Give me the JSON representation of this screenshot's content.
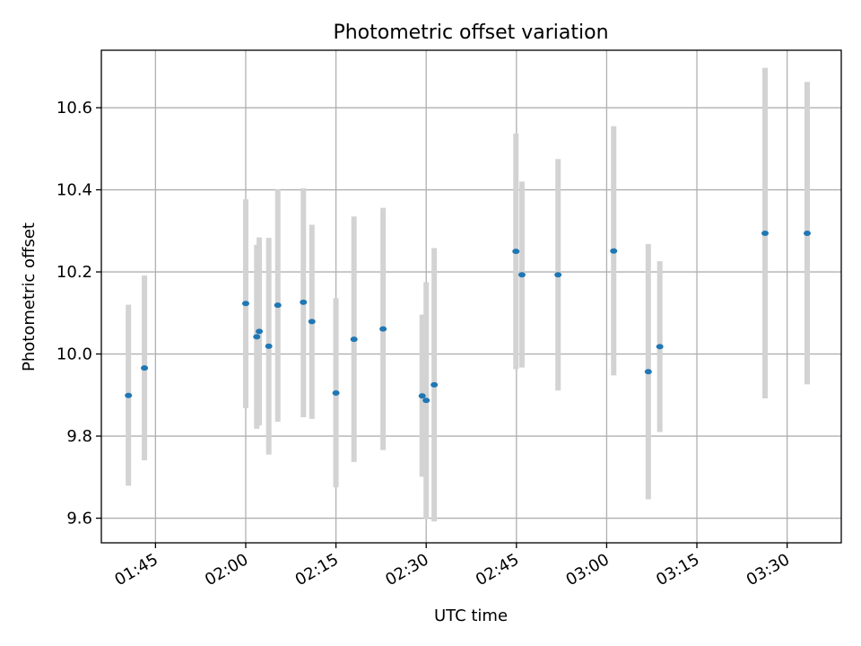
{
  "chart_data": {
    "type": "scatter",
    "title": "Photometric offset variation",
    "xlabel": "UTC time",
    "ylabel": "Photometric offset",
    "x_ticks": [
      "01:45",
      "02:00",
      "02:15",
      "02:30",
      "02:45",
      "03:00",
      "03:15",
      "03:30"
    ],
    "x_tick_values": [
      "01:45",
      "02:00",
      "02:15",
      "02:30",
      "02:45",
      "03:00",
      "03:15",
      "03:30"
    ],
    "y_ticks": [
      "9.6",
      "9.8",
      "10.0",
      "10.2",
      "10.4",
      "10.6"
    ],
    "xlim": [
      "01:36",
      "03:39"
    ],
    "ylim": [
      9.54,
      10.74
    ],
    "grid": true,
    "marker_color": "#1f77b4",
    "errorbar_color": "#d3d3d3",
    "series": [
      {
        "points": [
          {
            "t": "01:40:30",
            "y": 9.899,
            "lo": 9.679,
            "hi": 10.12
          },
          {
            "t": "01:43:10",
            "y": 9.966,
            "lo": 9.741,
            "hi": 10.191
          },
          {
            "t": "02:00:00",
            "y": 10.123,
            "lo": 9.868,
            "hi": 10.377
          },
          {
            "t": "02:01:50",
            "y": 10.042,
            "lo": 9.818,
            "hi": 10.266
          },
          {
            "t": "02:02:15",
            "y": 10.055,
            "lo": 9.826,
            "hi": 10.284
          },
          {
            "t": "02:03:50",
            "y": 10.019,
            "lo": 9.755,
            "hi": 10.283
          },
          {
            "t": "02:05:20",
            "y": 10.119,
            "lo": 9.835,
            "hi": 10.401
          },
          {
            "t": "02:09:35",
            "y": 10.126,
            "lo": 9.846,
            "hi": 10.404
          },
          {
            "t": "02:11:00",
            "y": 10.079,
            "lo": 9.842,
            "hi": 10.315
          },
          {
            "t": "02:15:00",
            "y": 9.905,
            "lo": 9.675,
            "hi": 10.136
          },
          {
            "t": "02:18:00",
            "y": 10.036,
            "lo": 9.737,
            "hi": 10.335
          },
          {
            "t": "02:22:50",
            "y": 10.061,
            "lo": 9.766,
            "hi": 10.356
          },
          {
            "t": "02:29:20",
            "y": 9.898,
            "lo": 9.701,
            "hi": 10.096
          },
          {
            "t": "02:30:00",
            "y": 9.887,
            "lo": 9.598,
            "hi": 10.175
          },
          {
            "t": "02:31:20",
            "y": 9.925,
            "lo": 9.592,
            "hi": 10.258
          },
          {
            "t": "02:44:55",
            "y": 10.25,
            "lo": 9.963,
            "hi": 10.537
          },
          {
            "t": "02:45:55",
            "y": 10.193,
            "lo": 9.967,
            "hi": 10.42
          },
          {
            "t": "02:51:55",
            "y": 10.193,
            "lo": 9.911,
            "hi": 10.475
          },
          {
            "t": "03:01:10",
            "y": 10.251,
            "lo": 9.948,
            "hi": 10.555
          },
          {
            "t": "03:06:55",
            "y": 9.957,
            "lo": 9.646,
            "hi": 10.268
          },
          {
            "t": "03:08:50",
            "y": 10.018,
            "lo": 9.81,
            "hi": 10.226
          },
          {
            "t": "03:26:20",
            "y": 10.294,
            "lo": 9.892,
            "hi": 10.697
          },
          {
            "t": "03:33:20",
            "y": 10.294,
            "lo": 9.926,
            "hi": 10.663
          }
        ]
      }
    ]
  }
}
